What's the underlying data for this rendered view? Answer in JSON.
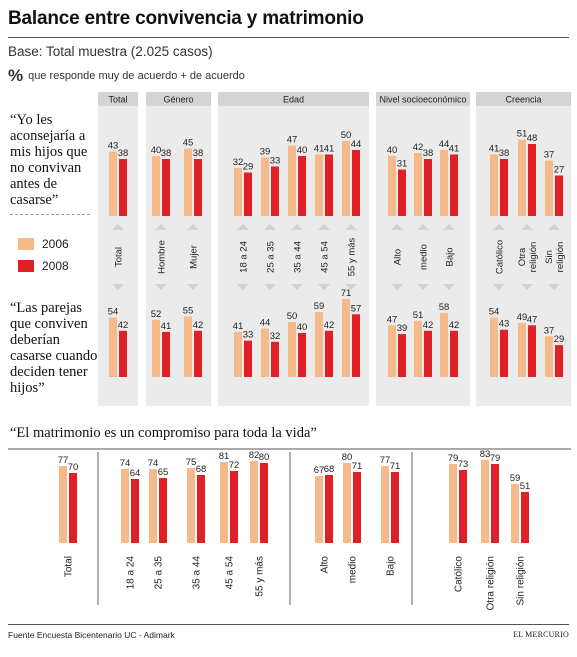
{
  "title": "Balance entre convivencia y matrimonio",
  "base_text": "Base: Total muestra (2.025 casos)",
  "pct_symbol": "%",
  "pct_caption": "que responde muy de acuerdo + de acuerdo",
  "colors": {
    "y2006": "#f5b98a",
    "y2008": "#e02027",
    "panel": "#ebebeb",
    "header": "#d4d4d4",
    "arrow": "#d2d2d2"
  },
  "legend": [
    {
      "label": "2006"
    },
    {
      "label": "2008"
    }
  ],
  "source": "Fuente  Encuesta Bicentenario UC - Adimark",
  "brand": "EL MERCURIO",
  "chart_data": [
    {
      "type": "bar",
      "question": "“Yo les aconsejaría a mis hijos que no convivan antes de casarse”",
      "group_headers": [
        "Total",
        "Género",
        "Edad",
        "Nivel socioeconómico",
        "Creencia"
      ],
      "categories": [
        "Total",
        "Hombre",
        "Mujer",
        "18 a 24",
        "25 a 35",
        "35 a 44",
        "45 a 54",
        "55 y más",
        "Alto",
        "medio",
        "Bajo",
        "Católico",
        "Otra religión",
        "Sin religión"
      ],
      "series": [
        {
          "name": "2006",
          "values": [
            43,
            40,
            45,
            32,
            39,
            47,
            41,
            50,
            40,
            42,
            44,
            41,
            51,
            37
          ]
        },
        {
          "name": "2008",
          "values": [
            38,
            38,
            38,
            29,
            33,
            40,
            41,
            44,
            31,
            38,
            41,
            38,
            48,
            27
          ]
        }
      ]
    },
    {
      "type": "bar",
      "question": "“Las parejas que conviven deberían casarse cuando deciden tener hijos”",
      "categories": [
        "Total",
        "Hombre",
        "Mujer",
        "18 a 24",
        "25 a 35",
        "35 a 44",
        "45 a 54",
        "55 y más",
        "Alto",
        "medio",
        "Bajo",
        "Católico",
        "Otra religión",
        "Sin religión"
      ],
      "series": [
        {
          "name": "2006",
          "values": [
            54,
            52,
            55,
            41,
            44,
            50,
            59,
            71,
            47,
            51,
            58,
            54,
            49,
            37
          ]
        },
        {
          "name": "2008",
          "values": [
            42,
            41,
            42,
            33,
            32,
            40,
            42,
            57,
            39,
            42,
            42,
            43,
            47,
            29
          ]
        }
      ]
    },
    {
      "type": "bar",
      "question": "“El matrimonio es un compromiso para toda la vida”",
      "categories": [
        "Total",
        "18 a 24",
        "25 a 35",
        "35 a 44",
        "45 a 54",
        "55 y más",
        "Alto",
        "medio",
        "Bajo",
        "Católico",
        "Otra religión",
        "Sin religión"
      ],
      "series": [
        {
          "name": "2006",
          "values": [
            77,
            74,
            74,
            75,
            81,
            82,
            67,
            80,
            77,
            79,
            83,
            59
          ]
        },
        {
          "name": "2008",
          "values": [
            70,
            64,
            65,
            68,
            72,
            80,
            68,
            71,
            71,
            73,
            79,
            51
          ]
        }
      ]
    }
  ]
}
